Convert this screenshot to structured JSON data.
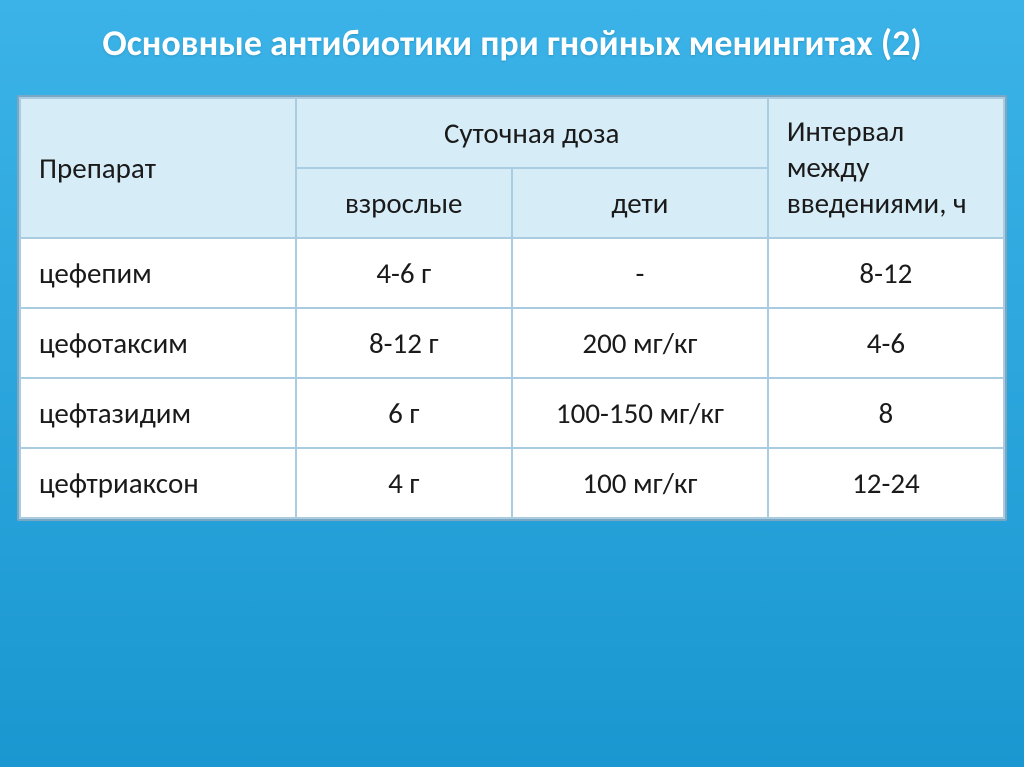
{
  "slide": {
    "title": "Основные антибиотики при гнойных менингитах (2)",
    "background_gradient": [
      "#3bb3e8",
      "#2ba5dc",
      "#1a97d0"
    ],
    "title_color": "#ffffff",
    "title_fontsize": 36
  },
  "table": {
    "type": "table",
    "header_bg": "#d6ecf7",
    "cell_bg": "#ffffff",
    "border_color": "#a9cce0",
    "text_color": "#1a1a1a",
    "fontsize": 29,
    "headers": {
      "drug": "Препарат",
      "daily_dose": "Суточная доза",
      "adults": "взрослые",
      "children": "дети",
      "interval": "Интервал между введениями, ч"
    },
    "columns": [
      "drug",
      "adults",
      "children",
      "interval"
    ],
    "col_widths_pct": [
      28,
      22,
      26,
      24
    ],
    "alignments": [
      "left",
      "center",
      "center",
      "center"
    ],
    "rows": [
      {
        "drug": "цефепим",
        "adults": "4-6 г",
        "children": "-",
        "interval": "8-12"
      },
      {
        "drug": "цефотаксим",
        "adults": "8-12 г",
        "children": "200 мг/кг",
        "interval": "4-6"
      },
      {
        "drug": "цефтазидим",
        "adults": "6 г",
        "children": "100-150 мг/кг",
        "interval": "8"
      },
      {
        "drug": "цефтриаксон",
        "adults": "4 г",
        "children": "100 мг/кг",
        "interval": "12-24"
      }
    ]
  }
}
